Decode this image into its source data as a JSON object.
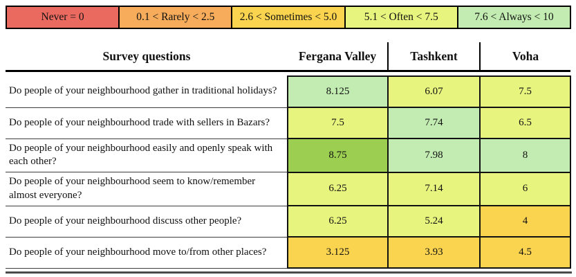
{
  "chart_data": {
    "type": "heatmap",
    "description": "Survey results table color-coded by frequency scale",
    "legend": [
      {
        "label": "Never = 0",
        "color": "#EB6A60"
      },
      {
        "label": "0.1 < Rarely < 2.5",
        "color": "#F6AC5B"
      },
      {
        "label": "2.6 < Sometimes < 5.0",
        "color": "#FBD44F"
      },
      {
        "label": "5.1 < Often < 7.5",
        "color": "#E7F47E"
      },
      {
        "label": "7.6 < Always < 10",
        "color": "#C2ECB1"
      }
    ],
    "row_header": "Survey questions",
    "columns": [
      "Fergana Valley",
      "Tashkent",
      "Voha"
    ],
    "value_range": [
      0,
      10
    ],
    "rows": [
      {
        "question": "Do people of your neighbourhood gather in traditional holidays?",
        "values": [
          {
            "v": "8.125",
            "color": "#C2ECB1"
          },
          {
            "v": "6.07",
            "color": "#E7F47E"
          },
          {
            "v": "7.5",
            "color": "#E7F47E"
          }
        ]
      },
      {
        "question": "Do people of your neighbourhood trade with sellers in Bazars?",
        "values": [
          {
            "v": "7.5",
            "color": "#E7F47E"
          },
          {
            "v": "7.74",
            "color": "#C2ECB1"
          },
          {
            "v": "6.5",
            "color": "#E7F47E"
          }
        ]
      },
      {
        "question": "Do people of your neighbourhood easily and openly speak with each other?",
        "values": [
          {
            "v": "8.75",
            "color": "#9CCE51"
          },
          {
            "v": "7.98",
            "color": "#C2ECB1"
          },
          {
            "v": "8",
            "color": "#C2ECB1"
          }
        ]
      },
      {
        "question": "Do people of your neighbourhood seem to know/remember almost everyone?",
        "values": [
          {
            "v": "6.25",
            "color": "#E7F47E"
          },
          {
            "v": "7.14",
            "color": "#E7F47E"
          },
          {
            "v": "6",
            "color": "#E7F47E"
          }
        ]
      },
      {
        "question": "Do people of your neighbourhood discuss other people?",
        "values": [
          {
            "v": "6.25",
            "color": "#E7F47E"
          },
          {
            "v": "5.24",
            "color": "#E7F47E"
          },
          {
            "v": "4",
            "color": "#FBD44F"
          }
        ]
      },
      {
        "question": "Do people of your neighbourhood move to/from other places?",
        "values": [
          {
            "v": "3.125",
            "color": "#FBD44F"
          },
          {
            "v": "3.93",
            "color": "#FBD44F"
          },
          {
            "v": "4.5",
            "color": "#FBD44F"
          }
        ]
      }
    ]
  }
}
